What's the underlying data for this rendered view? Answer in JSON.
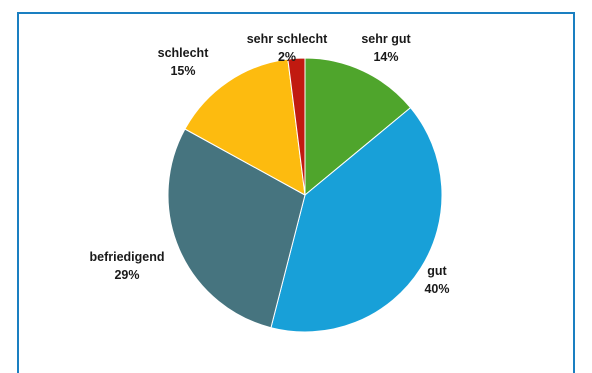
{
  "chart_data": {
    "type": "pie",
    "slices": [
      {
        "label": "sehr gut",
        "value": 14,
        "display": "14%",
        "color": "#4fa52c"
      },
      {
        "label": "gut",
        "value": 40,
        "display": "40%",
        "color": "#18a0d8"
      },
      {
        "label": "befriedigend",
        "value": 29,
        "display": "29%",
        "color": "#46747f"
      },
      {
        "label": "schlecht",
        "value": 15,
        "display": "15%",
        "color": "#fdbb0f"
      },
      {
        "label": "sehr schlecht",
        "value": 2,
        "display": "2%",
        "color": "#c11a10"
      }
    ],
    "start": "12 o'clock",
    "direction": "clockwise"
  },
  "colors": {
    "frame": "#1a7fc1",
    "slice_border": "#ffffff"
  }
}
